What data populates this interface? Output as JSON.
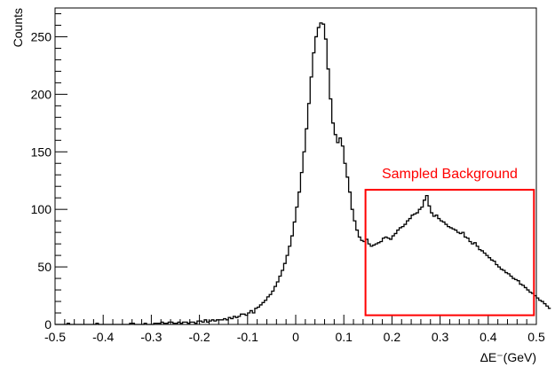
{
  "chart_data": {
    "type": "histogram",
    "xlabel": "ΔE⁻(GeV)",
    "ylabel": "Counts",
    "xlim": [
      -0.5,
      0.5
    ],
    "ylim": [
      0,
      275
    ],
    "x_tick_labels": [
      "-0.5",
      "-0.4",
      "-0.3",
      "-0.2",
      "-0.1",
      "0",
      "0.1",
      "0.2",
      "0.3",
      "0.4",
      "0.5"
    ],
    "y_tick_labels": [
      "0",
      "50",
      "100",
      "150",
      "200",
      "250"
    ],
    "y_tick_values": [
      0,
      50,
      100,
      150,
      200,
      250
    ],
    "bin_width": 0.005,
    "bin_start": -0.5,
    "values": [
      0,
      0,
      0,
      0,
      0,
      1,
      0,
      0,
      0,
      0,
      0,
      0,
      0,
      0,
      0,
      0,
      0,
      1,
      0,
      0,
      0,
      0,
      0,
      0,
      0,
      0,
      0,
      0,
      0,
      0,
      0,
      1,
      1,
      0,
      0,
      0,
      0,
      1,
      0,
      0,
      0,
      1,
      1,
      1,
      2,
      1,
      1,
      2,
      2,
      1,
      1,
      2,
      1,
      2,
      2,
      1,
      2,
      2,
      1,
      3,
      3,
      2,
      4,
      2,
      3,
      4,
      3,
      4,
      4,
      4,
      5,
      4,
      6,
      5,
      7,
      6,
      7,
      9,
      9,
      8,
      10,
      12,
      10,
      14,
      15,
      17,
      19,
      21,
      24,
      26,
      29,
      33,
      37,
      42,
      47,
      53,
      60,
      68,
      77,
      89,
      102,
      115,
      132,
      150,
      170,
      192,
      215,
      236,
      250,
      258,
      262,
      261,
      248,
      222,
      196,
      175,
      165,
      158,
      162,
      155,
      140,
      128,
      115,
      100,
      90,
      82,
      76,
      73,
      72,
      74,
      70,
      68,
      69,
      70,
      71,
      72,
      75,
      76,
      75,
      74,
      77,
      79,
      82,
      84,
      85,
      87,
      90,
      92,
      95,
      96,
      97,
      100,
      102,
      108,
      112,
      103,
      97,
      94,
      95,
      92,
      90,
      89,
      87,
      85,
      84,
      83,
      82,
      80,
      79,
      80,
      76,
      75,
      72,
      70,
      71,
      68,
      65,
      64,
      62,
      60,
      58,
      56,
      55,
      52,
      50,
      48,
      47,
      45,
      44,
      42,
      40,
      39,
      38,
      35,
      34,
      32,
      30,
      28,
      27,
      25,
      23,
      21,
      20,
      18,
      16,
      14
    ],
    "annotations": [
      {
        "text": "Sampled Background",
        "color": "#ff0000",
        "x_range": [
          0.145,
          0.495
        ],
        "y_range": [
          8,
          117
        ]
      }
    ],
    "colors": {
      "line": "#000000",
      "box": "#ff0000"
    }
  }
}
